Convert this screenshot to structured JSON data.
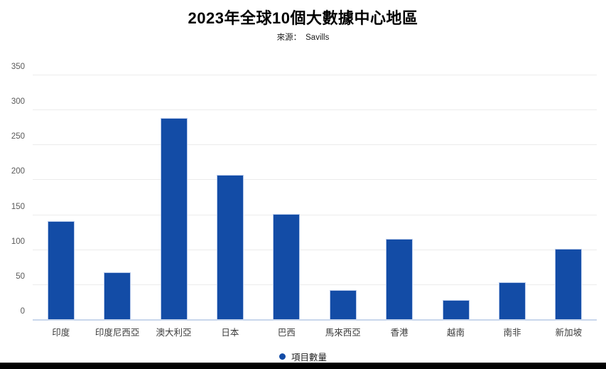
{
  "chart_data": {
    "type": "bar",
    "title": "2023年全球10個大數據中心地區",
    "source_prefix": "來源：",
    "source": "Savills",
    "categories": [
      "印度",
      "印度尼西亞",
      "澳大利亞",
      "日本",
      "巴西",
      "馬來西亞",
      "香港",
      "越南",
      "南非",
      "新加坡"
    ],
    "series": [
      {
        "name": "項目數量",
        "values": [
          141,
          68,
          289,
          208,
          152,
          43,
          116,
          28,
          54,
          102
        ]
      }
    ],
    "xlabel": "",
    "ylabel": "",
    "ylim": [
      0,
      350
    ],
    "yticks": [
      0,
      50,
      100,
      150,
      200,
      250,
      300,
      350
    ],
    "grid": true,
    "legend_position": "bottom",
    "colors": {
      "bar": "#134CA6",
      "bar_border": "#b5c8ea",
      "gridline": "#ececec",
      "axis_line": "#c9d7ec",
      "tick_label": "#595959",
      "category_label": "#3b3b3b",
      "title": "#000000",
      "bottom_strip": "#010101"
    }
  }
}
